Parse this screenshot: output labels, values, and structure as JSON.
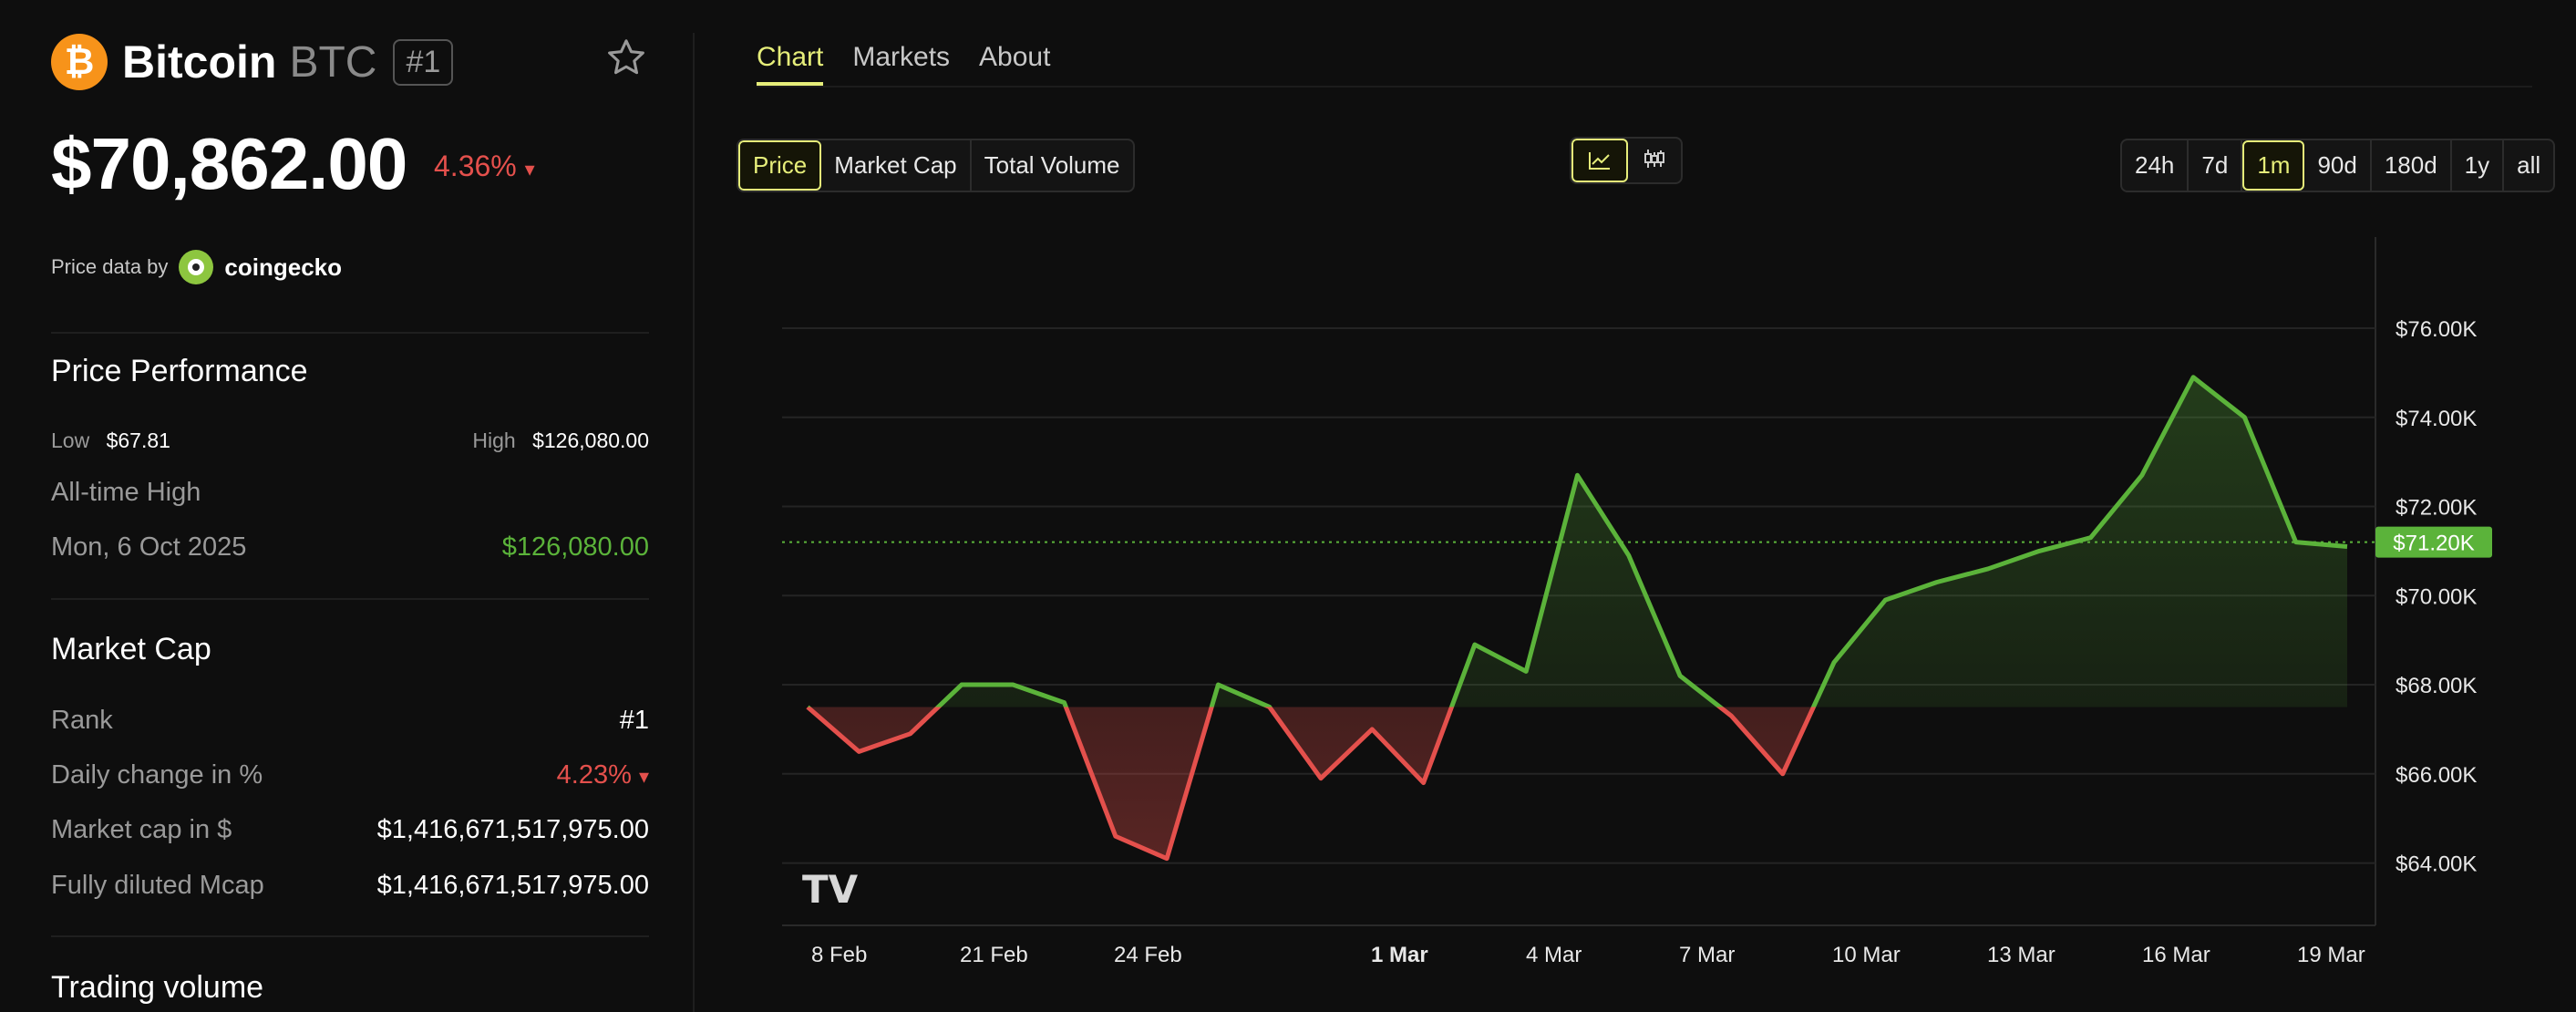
{
  "coin": {
    "name": "Bitcoin",
    "symbol": "BTC",
    "rank_badge": "#1",
    "price": "$70,862.00",
    "change_24h": "4.36%",
    "change_arrow": "▾",
    "price_data_label": "Price data by",
    "price_data_source": "coingecko",
    "logo_glyph": "₿"
  },
  "performance": {
    "title": "Price Performance",
    "low_label": "Low",
    "low_value": "$67.81",
    "high_label": "High",
    "high_value": "$126,080.00",
    "ath_label": "All-time High",
    "ath_date": "Mon, 6 Oct 2025",
    "ath_value": "$126,080.00"
  },
  "market_cap": {
    "title": "Market Cap",
    "rank_label": "Rank",
    "rank_value": "#1",
    "daily_label": "Daily change in %",
    "daily_value": "4.23%",
    "daily_arrow": "▾",
    "mcap_label": "Market cap in $",
    "mcap_value": "$1,416,671,517,975.00",
    "fdv_label": "Fully diluted Mcap",
    "fdv_value": "$1,416,671,517,975.00"
  },
  "trading_volume": {
    "title": "Trading volume"
  },
  "tabs": [
    {
      "label": "Chart",
      "active": true
    },
    {
      "label": "Markets",
      "active": false
    },
    {
      "label": "About",
      "active": false
    }
  ],
  "metric_buttons": [
    {
      "label": "Price",
      "selected": true
    },
    {
      "label": "Market Cap",
      "selected": false
    },
    {
      "label": "Total Volume",
      "selected": false
    }
  ],
  "chart_type_buttons": [
    {
      "icon": "line-chart-icon",
      "selected": true
    },
    {
      "icon": "candlestick-icon",
      "selected": false
    }
  ],
  "range_buttons": [
    {
      "label": "24h",
      "selected": false
    },
    {
      "label": "7d",
      "selected": false
    },
    {
      "label": "1m",
      "selected": true
    },
    {
      "label": "90d",
      "selected": false
    },
    {
      "label": "180d",
      "selected": false
    },
    {
      "label": "1y",
      "selected": false
    },
    {
      "label": "all",
      "selected": false
    }
  ],
  "colors": {
    "accent": "#e6ee7a",
    "up": "#5bb33a",
    "down": "#e4504c",
    "bitcoin": "#f7931a",
    "background": "#0e0e0e"
  },
  "chart_data": {
    "type": "line",
    "x_ticks": [
      "8 Feb",
      "21 Feb",
      "24 Feb",
      "1 Mar",
      "4 Mar",
      "7 Mar",
      "10 Mar",
      "13 Mar",
      "16 Mar",
      "19 Mar"
    ],
    "x_tick_bold": "1 Mar",
    "y_ticks": [
      "$64.00K",
      "$66.00K",
      "$68.00K",
      "$70.00K",
      "$72.00K",
      "$74.00K",
      "$76.00K"
    ],
    "ylim": [
      62.6,
      77.8
    ],
    "baseline": 67.5,
    "current_value": 71.2,
    "current_label": "$71.20K",
    "watermark": "TV",
    "series": [
      {
        "values": [
          67.5,
          66.5,
          66.9,
          68.0,
          68.0,
          67.6,
          64.6,
          64.1,
          68.0,
          67.5,
          65.9,
          67.0,
          65.8,
          68.9,
          68.3,
          72.7,
          70.9,
          68.2,
          67.3,
          66.0,
          68.5,
          69.9,
          70.3,
          70.6,
          71.0,
          71.3,
          72.7,
          74.9,
          74.0,
          71.2,
          71.1
        ]
      }
    ]
  }
}
